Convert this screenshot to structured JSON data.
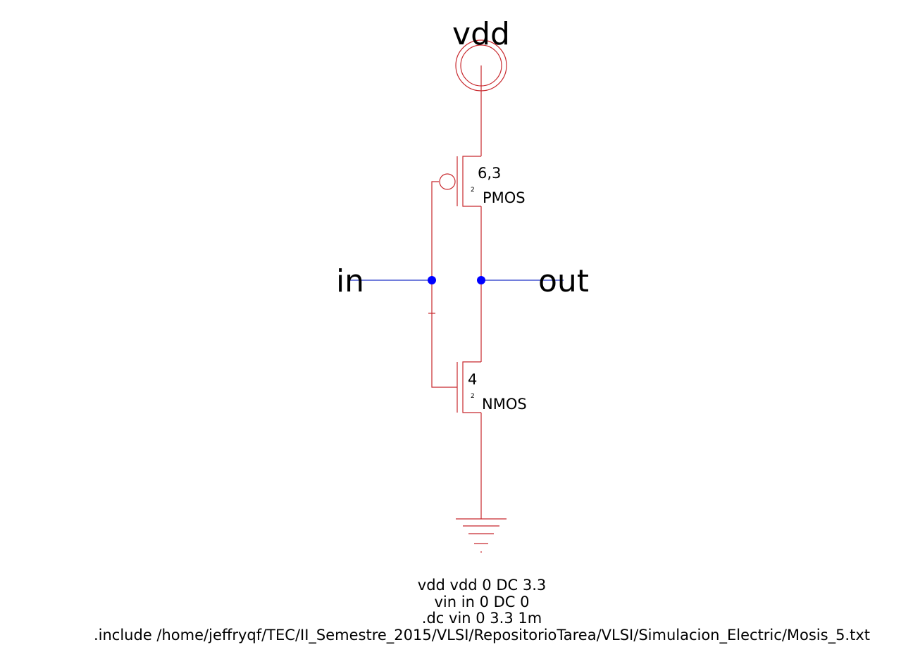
{
  "labels": {
    "vdd": "vdd",
    "in": "in",
    "out": "out"
  },
  "pmos": {
    "size": "6,3",
    "length_mark": "2",
    "name": "PMOS"
  },
  "nmos": {
    "size": "4",
    "length_mark": "2",
    "name": "NMOS"
  },
  "spice": [
    "vdd vdd 0 DC 3.3",
    "vin in 0 DC 0",
    ".dc vin 0 3.3 1m",
    ".include /home/jeffryqf/TEC/II_Semestre_2015/VLSI/RepositorioTarea/VLSI/Simulacion_Electric/Mosis_5.txt"
  ],
  "colors": {
    "component": "#c8282d",
    "wire": "#1e32c8",
    "node": "#0000ff",
    "text": "#000000"
  }
}
